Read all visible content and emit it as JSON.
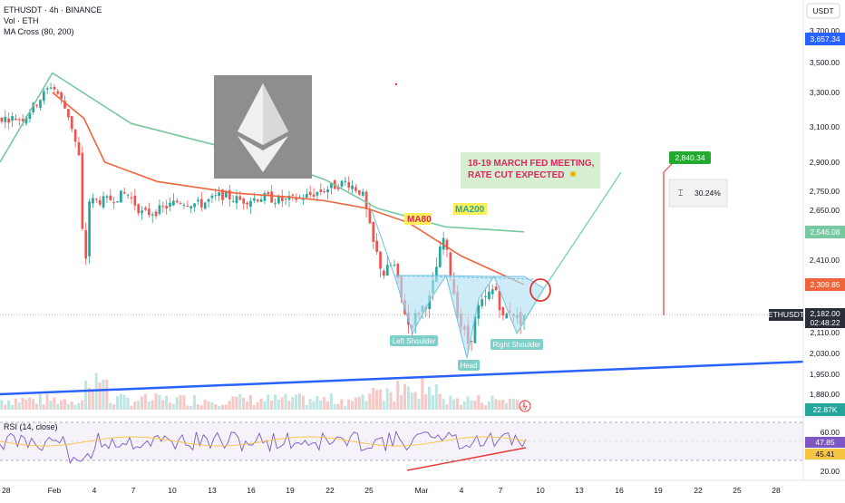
{
  "header": {
    "symbol_line": "ETHUSDT · 4h · BINANCE",
    "volume_line": "Vol · ETH",
    "ma_line": "MA Cross (80, 200)",
    "rsi_line": "RSI (14, close)"
  },
  "price_axis": {
    "currency": "USDT",
    "ticks": [
      "3,700.00",
      "3,500.00",
      "3,300.00",
      "3,100.00",
      "2,900.00",
      "2,750.00",
      "2,650.00",
      "2,410.00",
      "2,110.00",
      "2,030.00",
      "1,950.00",
      "1,880.00"
    ]
  },
  "price_tags": {
    "high_marker": "3,657.34",
    "ma200": "2,546.08",
    "ma80": "2,309.85",
    "symbol": "ETHUSDT",
    "last_price": "2,182.00",
    "countdown": "02:48:22",
    "volume": "22.87K"
  },
  "rsi_axis": {
    "ticks": [
      "60.00",
      "20.00"
    ],
    "rsi_value": "47.85",
    "ma_value": "45.41"
  },
  "time_axis": {
    "ticks": [
      "28",
      "Feb",
      "4",
      "7",
      "10",
      "13",
      "16",
      "19",
      "22",
      "25",
      "Mar",
      "4",
      "7",
      "10",
      "13",
      "16",
      "19",
      "22",
      "25",
      "28"
    ]
  },
  "annotations": {
    "fed_line1": "18-19 MARCH FED MEETING,",
    "fed_line2": "RATE CUT EXPECTED",
    "ma80_label": "MA80",
    "ma200_label": "MA200",
    "left_shoulder": "Left Shoulder",
    "head": "Head",
    "right_shoulder": "Right Shoulder",
    "target_price": "2,840.34",
    "target_pct": "30.24%"
  },
  "colors": {
    "up": "#26a69a",
    "down": "#ef5350",
    "ma80": "#f0643c",
    "ma200": "#78c8a0",
    "trend": "#2962ff",
    "rsi": "#7e57c2",
    "rsi_ma": "#f7c543",
    "pattern_fill": "#b3e0f5"
  },
  "chart_data": {
    "type": "candlestick",
    "title": "ETHUSDT · 4h · BINANCE",
    "series": [
      {
        "name": "MA Cross (80, 200) - MA80",
        "values": []
      },
      {
        "name": "MA Cross (80, 200) - MA200",
        "values": []
      }
    ],
    "x_ticks": [
      "28",
      "Feb",
      "4",
      "7",
      "10",
      "13",
      "16",
      "19",
      "22",
      "25",
      "Mar",
      "4",
      "7",
      "10",
      "13",
      "16",
      "19",
      "22",
      "25",
      "28"
    ],
    "y_ticks": [
      3700,
      3500,
      3300,
      3100,
      2900,
      2750,
      2650,
      2410,
      2110,
      2030,
      1950,
      1880
    ],
    "price_points": [
      {
        "date": "Jan 28",
        "price": 3150
      },
      {
        "date": "Jan 31",
        "price": 3350
      },
      {
        "date": "Feb 1",
        "price": 3300
      },
      {
        "date": "Feb 3",
        "price": 2250
      },
      {
        "date": "Feb 4",
        "price": 2750
      },
      {
        "date": "Feb 7",
        "price": 2620
      },
      {
        "date": "Feb 10",
        "price": 2650
      },
      {
        "date": "Feb 13",
        "price": 2700
      },
      {
        "date": "Feb 16",
        "price": 2700
      },
      {
        "date": "Feb 19",
        "price": 2740
      },
      {
        "date": "Feb 22",
        "price": 2760
      },
      {
        "date": "Feb 24",
        "price": 2800
      },
      {
        "date": "Feb 25",
        "price": 2500
      },
      {
        "date": "Feb 27",
        "price": 2300
      },
      {
        "date": "Feb 28",
        "price": 2150
      },
      {
        "date": "Mar 2",
        "price": 2520
      },
      {
        "date": "Mar 3",
        "price": 2200
      },
      {
        "date": "Mar 4",
        "price": 2060
      },
      {
        "date": "Mar 5",
        "price": 2250
      },
      {
        "date": "Mar 6",
        "price": 2300
      },
      {
        "date": "Mar 7",
        "price": 2200
      },
      {
        "date": "Mar 9",
        "price": 2182
      }
    ],
    "last_price": 2182.0,
    "ma80_last": 2309.85,
    "ma200_last": 2546.08,
    "projected_target": 2840.34,
    "projected_change_pct": 30.24,
    "rsi": {
      "value": 47.85,
      "ma": 45.41,
      "upper": 60,
      "lower": 20
    },
    "pattern": "Inverse Head and Shoulders",
    "legend_position": "top-left",
    "grid": false
  }
}
